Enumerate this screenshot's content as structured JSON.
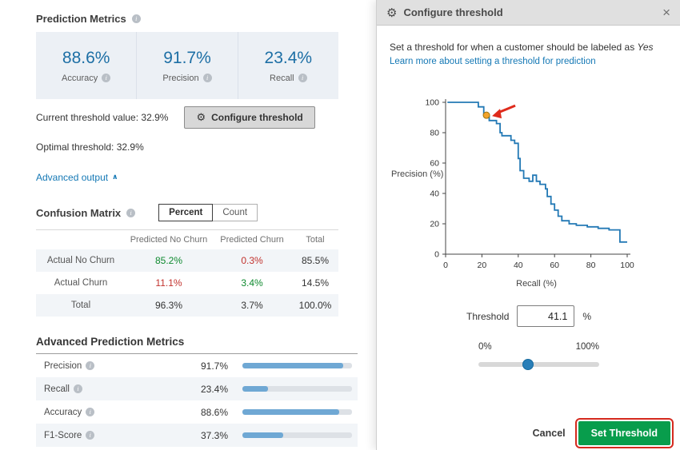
{
  "icons": {
    "info": "i",
    "gear": "⚙",
    "close": "×",
    "chevron_up": "∧"
  },
  "colors": {
    "metric_blue": "#1d6fa5",
    "green": "#0f8a2f",
    "red": "#c2322d",
    "bar_blue": "#6fa8d4",
    "button_green": "#089d4c",
    "annotation_red": "#df2b1c",
    "link_blue": "#1478b5"
  },
  "left": {
    "title": "Prediction Metrics",
    "metrics": [
      {
        "value": "88.6%",
        "label": "Accuracy"
      },
      {
        "value": "91.7%",
        "label": "Precision"
      },
      {
        "value": "23.4%",
        "label": "Recall"
      }
    ],
    "current_threshold": "Current threshold value: 32.9%",
    "configure_button": "Configure threshold",
    "optimal_threshold": "Optimal threshold: 32.9%",
    "advanced_output": "Advanced output",
    "confusion": {
      "title": "Confusion Matrix",
      "toggle": [
        "Percent",
        "Count"
      ],
      "headers": [
        "Predicted No Churn",
        "Predicted Churn",
        "Total"
      ],
      "rows": [
        {
          "label": "Actual No Churn",
          "c1": "85.2%",
          "c1_color": "green",
          "c2": "0.3%",
          "c2_color": "red",
          "total": "85.5%"
        },
        {
          "label": "Actual Churn",
          "c1": "11.1%",
          "c1_color": "red",
          "c2": "3.4%",
          "c2_color": "green",
          "total": "14.5%"
        },
        {
          "label": "Total",
          "c1": "96.3%",
          "c1_color": "dark",
          "c2": "3.7%",
          "c2_color": "dark",
          "total": "100.0%"
        }
      ]
    },
    "advanced_metrics": {
      "title": "Advanced Prediction Metrics",
      "rows": [
        {
          "label": "Precision",
          "value": "91.7%",
          "pct": 91.7
        },
        {
          "label": "Recall",
          "value": "23.4%",
          "pct": 23.4
        },
        {
          "label": "Accuracy",
          "value": "88.6%",
          "pct": 88.6
        },
        {
          "label": "F1-Score",
          "value": "37.3%",
          "pct": 37.3
        }
      ]
    }
  },
  "panel": {
    "title": "Configure threshold",
    "description_prefix": "Set a threshold for when a customer should be labeled as ",
    "description_em": "Yes",
    "link": "Learn more about setting a threshold for prediction",
    "threshold_label": "Threshold",
    "threshold_value": "41.1",
    "threshold_unit": "%",
    "slider_min": "0%",
    "slider_max": "100%",
    "slider_pos_pct": 41.1,
    "cancel": "Cancel",
    "set_threshold": "Set Threshold"
  },
  "chart_data": {
    "type": "line",
    "xlabel": "Recall (%)",
    "ylabel": "Precision (%)",
    "xlim": [
      0,
      100
    ],
    "ylim": [
      0,
      100
    ],
    "xticks": [
      0,
      20,
      40,
      60,
      80,
      100
    ],
    "yticks": [
      0,
      20,
      40,
      60,
      80,
      100
    ],
    "line_color": "#2379b5",
    "series": [
      {
        "name": "precision-recall curve",
        "points": [
          [
            1,
            100
          ],
          [
            18,
            100
          ],
          [
            18,
            97
          ],
          [
            21,
            97
          ],
          [
            21,
            91.5
          ],
          [
            24,
            91.5
          ],
          [
            24,
            88
          ],
          [
            28,
            88
          ],
          [
            28,
            86
          ],
          [
            30,
            86
          ],
          [
            30,
            80
          ],
          [
            31,
            80
          ],
          [
            31,
            78
          ],
          [
            36,
            78
          ],
          [
            36,
            75
          ],
          [
            38,
            75
          ],
          [
            38,
            73
          ],
          [
            40,
            73
          ],
          [
            40,
            63
          ],
          [
            41,
            63
          ],
          [
            41,
            55
          ],
          [
            43,
            55
          ],
          [
            43,
            50
          ],
          [
            46,
            50
          ],
          [
            46,
            48
          ],
          [
            48,
            48
          ],
          [
            48,
            52
          ],
          [
            50,
            52
          ],
          [
            50,
            48
          ],
          [
            52,
            48
          ],
          [
            52,
            46
          ],
          [
            55,
            46
          ],
          [
            55,
            43
          ],
          [
            56,
            43
          ],
          [
            56,
            38
          ],
          [
            58,
            38
          ],
          [
            58,
            33
          ],
          [
            60,
            33
          ],
          [
            60,
            29
          ],
          [
            62,
            29
          ],
          [
            62,
            25
          ],
          [
            64,
            25
          ],
          [
            64,
            22
          ],
          [
            68,
            22
          ],
          [
            68,
            20
          ],
          [
            72,
            20
          ],
          [
            72,
            19
          ],
          [
            78,
            19
          ],
          [
            78,
            18
          ],
          [
            84,
            18
          ],
          [
            84,
            17
          ],
          [
            90,
            17
          ],
          [
            90,
            16
          ],
          [
            96,
            16
          ],
          [
            96,
            8
          ],
          [
            100,
            8
          ]
        ]
      }
    ],
    "marker": {
      "x": 22.5,
      "y": 91.5,
      "color": "#f2a32a"
    },
    "annotation_arrow": {
      "color": "#df2b1c"
    }
  }
}
